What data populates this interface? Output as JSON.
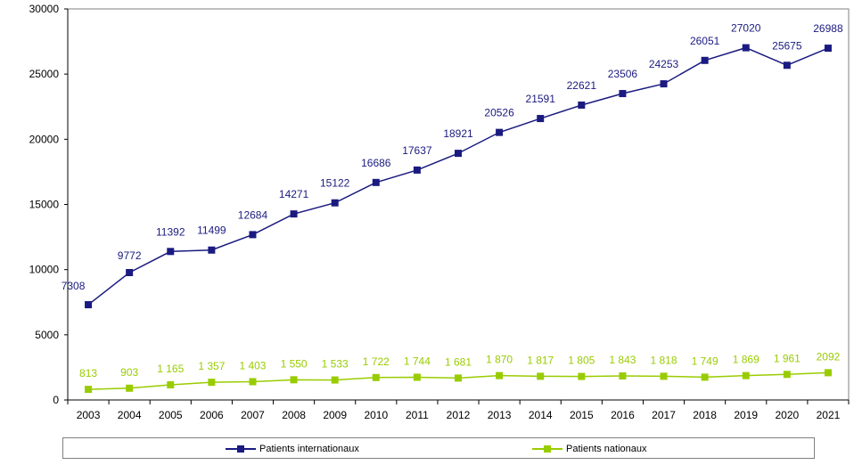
{
  "chart_data": {
    "type": "line",
    "title": "",
    "xlabel": "",
    "ylabel": "",
    "categories": [
      "2003",
      "2004",
      "2005",
      "2006",
      "2007",
      "2008",
      "2009",
      "2010",
      "2011",
      "2012",
      "2013",
      "2014",
      "2015",
      "2016",
      "2017",
      "2018",
      "2019",
      "2020",
      "2021"
    ],
    "ylim": [
      0,
      30000
    ],
    "yticks": [
      "0",
      "5000",
      "10000",
      "15000",
      "20000",
      "25000",
      "30000"
    ],
    "grid": false,
    "legend_position": "bottom",
    "series": [
      {
        "name": "Patients internationaux",
        "color": "#1a1a80",
        "values": [
          7308,
          9772,
          11392,
          11499,
          12684,
          14271,
          15122,
          16686,
          17637,
          18921,
          20526,
          21591,
          22621,
          23506,
          24253,
          26051,
          27020,
          25675,
          26988
        ],
        "labels": [
          "7308",
          "9772",
          "11392",
          "11499",
          "12684",
          "14271",
          "15122",
          "16686",
          "17637",
          "18921",
          "20526",
          "21591",
          "22621",
          "23506",
          "24253",
          "26051",
          "27020",
          "25675",
          "26988"
        ]
      },
      {
        "name": "Patients nationaux",
        "color": "#99cc00",
        "values": [
          813,
          903,
          1165,
          1357,
          1403,
          1550,
          1533,
          1722,
          1744,
          1681,
          1870,
          1817,
          1805,
          1843,
          1818,
          1749,
          1869,
          1961,
          2092
        ],
        "labels": [
          "813",
          "903",
          "1 165",
          "1 357",
          "1 403",
          "1 550",
          "1 533",
          "1 722",
          "1 744",
          "1 681",
          "1 870",
          "1 817",
          "1 805",
          "1 843",
          "1 818",
          "1 749",
          "1 869",
          "1 961",
          "2092"
        ]
      }
    ]
  }
}
